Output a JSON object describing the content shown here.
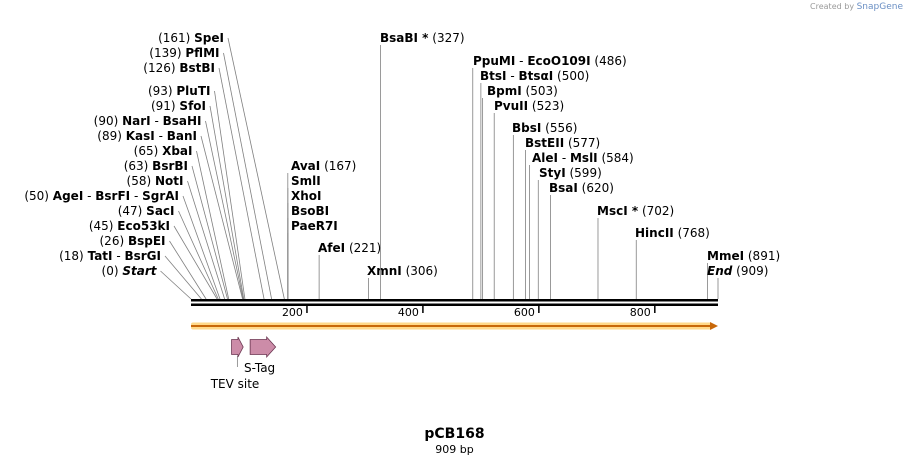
{
  "header": {
    "credit_prefix": "Created by",
    "credit_brand": "SnapGene"
  },
  "plasmid": {
    "name": "pCB168",
    "length_label": "909 bp",
    "length_bp": 909
  },
  "colors": {
    "backbone": "#000000",
    "orf_fill": "#ffd98a",
    "orf_stroke": "#c8680a",
    "feature_fill": "#cc8ca8",
    "feature_stroke": "#6a3550",
    "line": "#808080"
  },
  "ruler": {
    "ticks": [
      200,
      400,
      600,
      800
    ]
  },
  "features": [
    {
      "name": "TEV site",
      "start": 70,
      "end": 90
    },
    {
      "name": "S-Tag",
      "start": 102,
      "end": 146
    }
  ],
  "orf": {
    "start": 0,
    "end": 909
  },
  "sites": [
    {
      "names": [
        "Start"
      ],
      "pos": "(0)",
      "bp": 0,
      "side": "left",
      "italic": true
    },
    {
      "names": [
        "TatI",
        "BsrGI"
      ],
      "pos": "(18)",
      "bp": 18,
      "side": "left"
    },
    {
      "names": [
        "BspEI"
      ],
      "pos": "(26)",
      "bp": 26,
      "side": "left"
    },
    {
      "names": [
        "Eco53kI"
      ],
      "pos": "(45)",
      "bp": 45,
      "side": "left"
    },
    {
      "names": [
        "SacI"
      ],
      "pos": "(47)",
      "bp": 47,
      "side": "left"
    },
    {
      "names": [
        "AgeI",
        "BsrFI",
        "SgrAI"
      ],
      "pos": "(50)",
      "bp": 50,
      "side": "left"
    },
    {
      "names": [
        "NotI"
      ],
      "pos": "(58)",
      "bp": 58,
      "side": "left"
    },
    {
      "names": [
        "BsrBI"
      ],
      "pos": "(63)",
      "bp": 63,
      "side": "left"
    },
    {
      "names": [
        "XbaI"
      ],
      "pos": "(65)",
      "bp": 65,
      "side": "left"
    },
    {
      "names": [
        "KasI",
        "BanI"
      ],
      "pos": "(89)",
      "bp": 89,
      "side": "left"
    },
    {
      "names": [
        "NarI",
        "BsaHI"
      ],
      "pos": "(90)",
      "bp": 90,
      "side": "left"
    },
    {
      "names": [
        "SfoI"
      ],
      "pos": "(91)",
      "bp": 91,
      "side": "left"
    },
    {
      "names": [
        "PluTI"
      ],
      "pos": "(93)",
      "bp": 93,
      "side": "left"
    },
    {
      "names": [
        "BstBI"
      ],
      "pos": "(126)",
      "bp": 126,
      "side": "left"
    },
    {
      "names": [
        "PflMI"
      ],
      "pos": "(139)",
      "bp": 139,
      "side": "left"
    },
    {
      "names": [
        "SpeI"
      ],
      "pos": "(161)",
      "bp": 161,
      "side": "left"
    },
    {
      "names": [
        "AvaI"
      ],
      "pos": "(167)",
      "bp": 167,
      "side": "right"
    },
    {
      "names": [
        "SmlI"
      ],
      "pos": "",
      "bp": 167,
      "side": "right"
    },
    {
      "names": [
        "XhoI"
      ],
      "pos": "",
      "bp": 167,
      "side": "right"
    },
    {
      "names": [
        "BsoBI"
      ],
      "pos": "",
      "bp": 167,
      "side": "right"
    },
    {
      "names": [
        "PaeR7I"
      ],
      "pos": "",
      "bp": 167,
      "side": "right"
    },
    {
      "names": [
        "AfeI"
      ],
      "pos": "(221)",
      "bp": 221,
      "side": "right"
    },
    {
      "names": [
        "XmnI"
      ],
      "pos": "(306)",
      "bp": 306,
      "side": "right"
    },
    {
      "names": [
        "BsaBI *"
      ],
      "pos": "(327)",
      "bp": 327,
      "side": "right"
    },
    {
      "names": [
        "PpuMI",
        "EcoO109I"
      ],
      "pos": "(486)",
      "bp": 486,
      "side": "right"
    },
    {
      "names": [
        "BtsI",
        "BtsαI"
      ],
      "pos": "(500)",
      "bp": 500,
      "side": "right"
    },
    {
      "names": [
        "BpmI"
      ],
      "pos": "(503)",
      "bp": 503,
      "side": "right"
    },
    {
      "names": [
        "PvuII"
      ],
      "pos": "(523)",
      "bp": 523,
      "side": "right"
    },
    {
      "names": [
        "BbsI"
      ],
      "pos": "(556)",
      "bp": 556,
      "side": "right"
    },
    {
      "names": [
        "BstEII"
      ],
      "pos": "(577)",
      "bp": 577,
      "side": "right"
    },
    {
      "names": [
        "AleI",
        "MslI"
      ],
      "pos": "(584)",
      "bp": 584,
      "side": "right"
    },
    {
      "names": [
        "StyI"
      ],
      "pos": "(599)",
      "bp": 599,
      "side": "right"
    },
    {
      "names": [
        "BsaI"
      ],
      "pos": "(620)",
      "bp": 620,
      "side": "right"
    },
    {
      "names": [
        "MscI *"
      ],
      "pos": "(702)",
      "bp": 702,
      "side": "right"
    },
    {
      "names": [
        "HincII"
      ],
      "pos": "(768)",
      "bp": 768,
      "side": "right"
    },
    {
      "names": [
        "MmeI"
      ],
      "pos": "(891)",
      "bp": 891,
      "side": "right"
    },
    {
      "names": [
        "End"
      ],
      "pos": "(909)",
      "bp": 909,
      "side": "right",
      "italic": true
    }
  ]
}
